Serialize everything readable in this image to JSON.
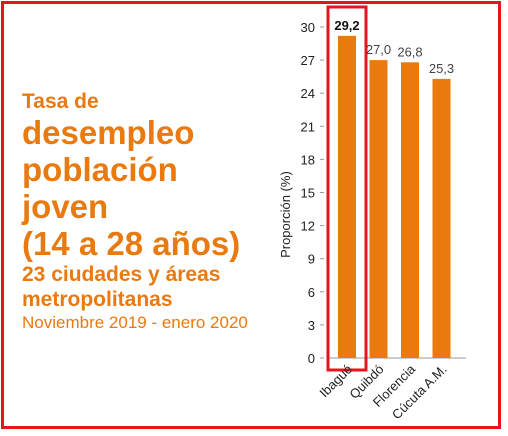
{
  "title": {
    "line1": "Tasa de",
    "line2": "desempleo",
    "line3": "población",
    "line4": "joven",
    "line5": "(14 a 28 años)",
    "line6": "23 ciudades y áreas",
    "line7": "metropolitanas",
    "line8": "Noviembre 2019 - enero 2020"
  },
  "colors": {
    "bar": "#e97a0f",
    "accent": "#e8141c",
    "title": "#e97a0f"
  },
  "chart_data": {
    "type": "bar",
    "categories": [
      "Ibagué",
      "Quibdó",
      "Florencia",
      "Cúcuta A.M."
    ],
    "values": [
      29.2,
      27.0,
      26.8,
      25.3
    ],
    "value_labels": [
      "29,2",
      "27,0",
      "26,8",
      "25,3"
    ],
    "highlighted": "Ibagué",
    "ylabel": "Proporción (%)",
    "ylim": [
      0,
      30
    ],
    "yticks": [
      0,
      3,
      6,
      9,
      12,
      15,
      18,
      21,
      24,
      27,
      30
    ],
    "grid": false,
    "legend": "none"
  }
}
